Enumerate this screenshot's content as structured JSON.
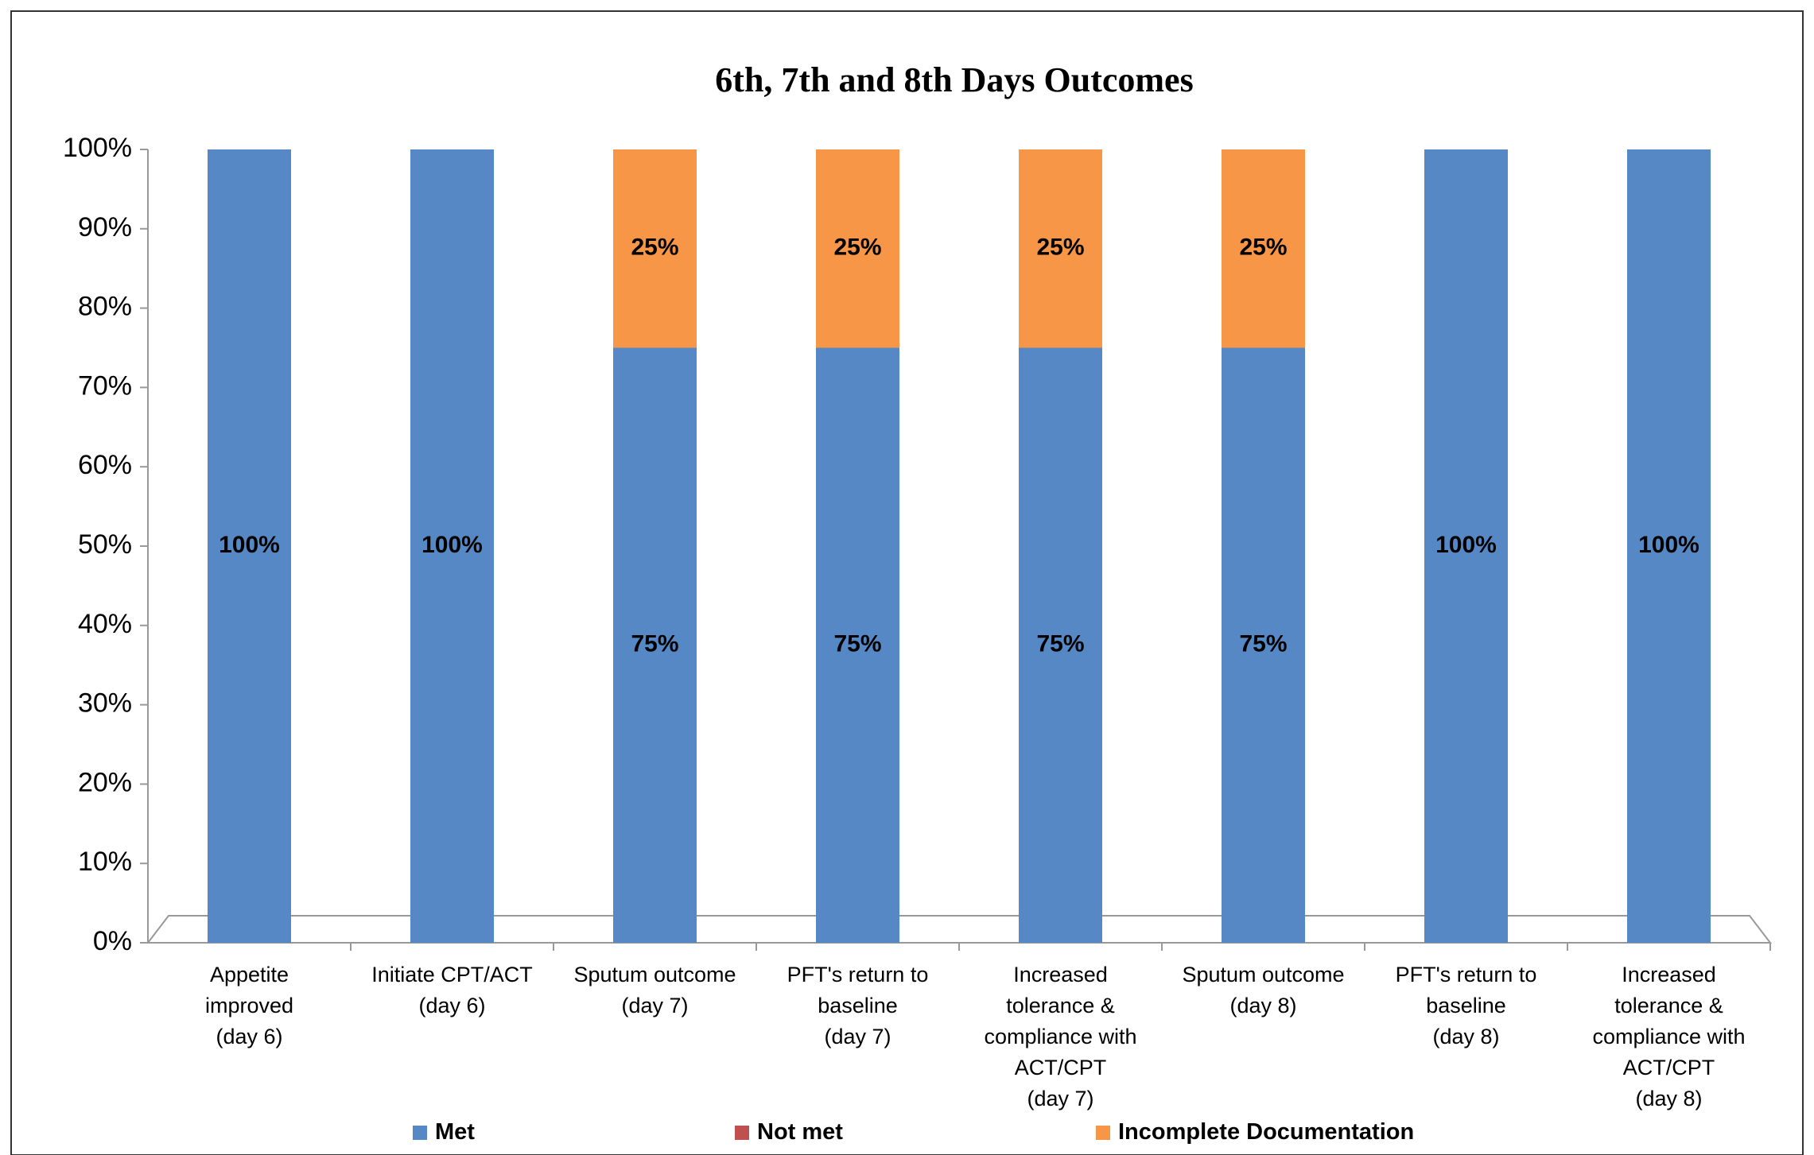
{
  "chart_data": {
    "type": "stacked_bar",
    "title": "6th, 7th and 8th Days Outcomes",
    "categories": [
      "Appetite\nimproved\n(day 6)",
      "Initiate CPT/ACT\n(day 6)",
      "Sputum outcome\n(day 7)",
      "PFT's return to\nbaseline\n(day 7)",
      "Increased\ntolerance &\ncompliance with\nACT/CPT\n(day 7)",
      "Sputum outcome\n(day 8)",
      "PFT's return to\nbaseline\n(day 8)",
      "Increased\ntolerance &\ncompliance with\nACT/CPT\n(day 8)"
    ],
    "series": [
      {
        "name": "Met",
        "color": "#5588c5",
        "values": [
          100,
          100,
          75,
          75,
          75,
          75,
          100,
          100
        ],
        "value_labels": [
          "100%",
          "100%",
          "75%",
          "75%",
          "75%",
          "75%",
          "100%",
          "100%"
        ]
      },
      {
        "name": "Not met",
        "color": "#c0504d",
        "values": [
          0,
          0,
          0,
          0,
          0,
          0,
          0,
          0
        ],
        "value_labels": [
          null,
          null,
          null,
          null,
          null,
          null,
          null,
          null
        ]
      },
      {
        "name": "Incomplete Documentation",
        "color": "#f79646",
        "values": [
          0,
          0,
          25,
          25,
          25,
          25,
          0,
          0
        ],
        "value_labels": [
          null,
          null,
          "25%",
          "25%",
          "25%",
          "25%",
          null,
          null
        ]
      }
    ],
    "ylim": [
      0,
      100
    ],
    "yticks": [
      {
        "value": 0,
        "label": "0%"
      },
      {
        "value": 10,
        "label": "10%"
      },
      {
        "value": 20,
        "label": "20%"
      },
      {
        "value": 30,
        "label": "30%"
      },
      {
        "value": 40,
        "label": "40%"
      },
      {
        "value": 50,
        "label": "50%"
      },
      {
        "value": 60,
        "label": "60%"
      },
      {
        "value": 70,
        "label": "70%"
      },
      {
        "value": 80,
        "label": "80%"
      },
      {
        "value": 90,
        "label": "90%"
      },
      {
        "value": 100,
        "label": "100%"
      }
    ],
    "legend": "bottom"
  }
}
